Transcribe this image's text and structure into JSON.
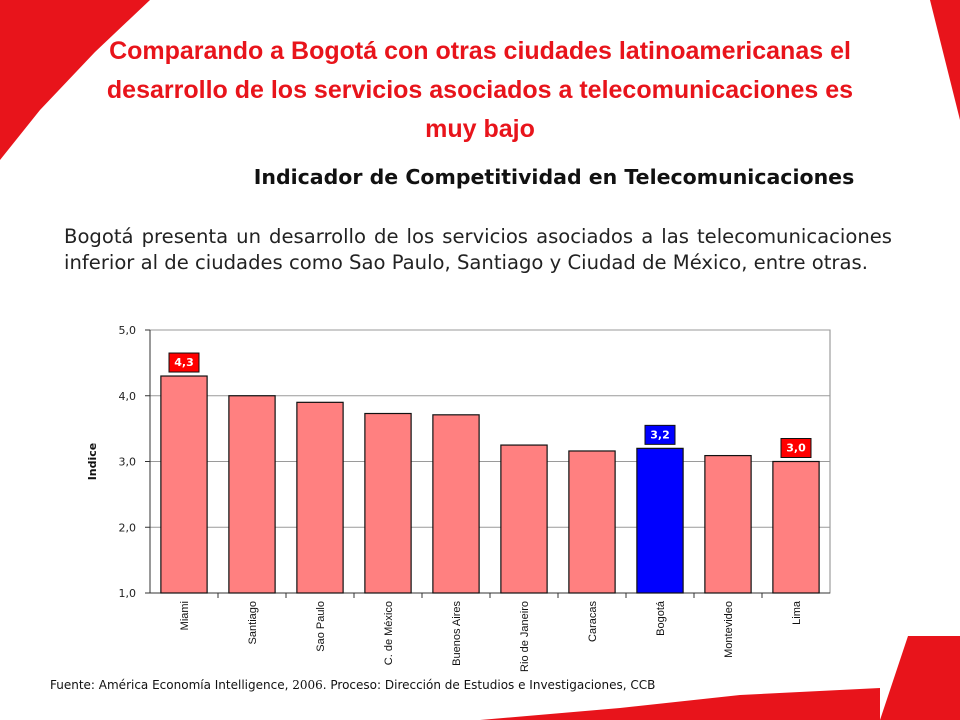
{
  "slide": {
    "title": "Comparando a Bogotá con otras ciudades latinoamericanas el desarrollo de los servicios asociados a telecomunicaciones es muy bajo",
    "chart_heading": "Indicador de Competitividad en Telecomunicaciones",
    "description": "Bogotá presenta un desarrollo de los servicios asociados a las telecomunicaciones inferior al de ciudades como Sao Paulo, Santiago y Ciudad de México, entre otras.",
    "source_prefix": "Fuente: América Economía Intelligence, ",
    "source_year": "2006",
    "source_suffix": ". Proceso: Dirección de Estudios e Investigaciones, CCB"
  },
  "colors": {
    "brand_red": "#e8141b",
    "bar_default": "#ff8080",
    "bar_highlight": "#0000ff",
    "label_red": "#ff0000",
    "label_blue": "#0000ff"
  },
  "chart_data": {
    "type": "bar",
    "ylabel": "Indice",
    "ylim": [
      1.0,
      5.0
    ],
    "yticks": [
      "1,0",
      "2,0",
      "3,0",
      "4,0",
      "5,0"
    ],
    "grid": true,
    "categories": [
      "Miami",
      "Santiago",
      "Sao Paulo",
      "C. de México",
      "Buenos Aires",
      "Rio de Janeiro",
      "Caracas",
      "Bogotá",
      "Montevideo",
      "Lima"
    ],
    "values": [
      4.3,
      4.0,
      3.9,
      3.73,
      3.71,
      3.25,
      3.16,
      3.2,
      3.09,
      3.0
    ],
    "highlight_index": 7,
    "data_labels": [
      {
        "category": "Miami",
        "text": "4,3",
        "color": "red"
      },
      {
        "category": "Bogotá",
        "text": "3,2",
        "color": "blue"
      },
      {
        "category": "Lima",
        "text": "3,0",
        "color": "red"
      }
    ]
  }
}
